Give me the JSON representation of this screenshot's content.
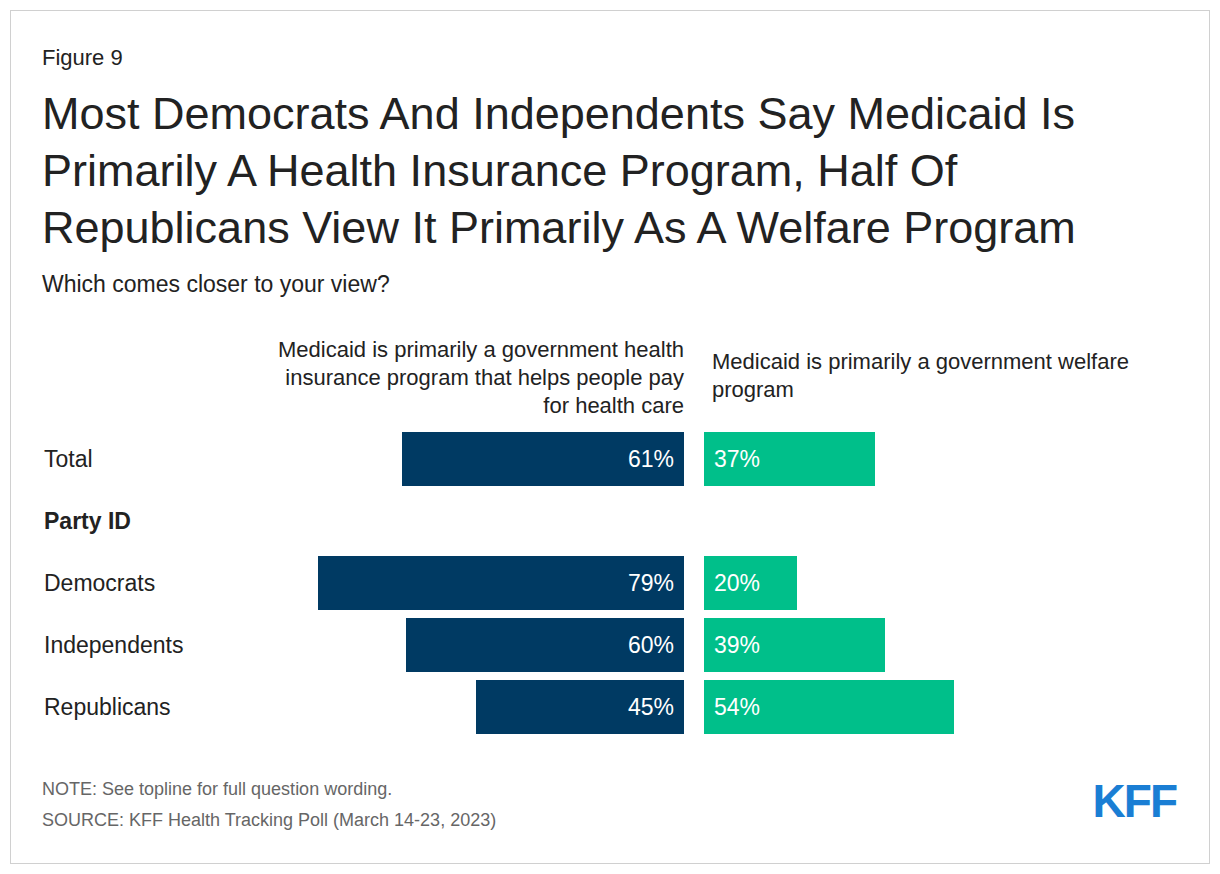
{
  "chart_data": {
    "type": "bar",
    "orientation": "horizontal",
    "figure_label": "Figure 9",
    "title": "Most Democrats And Independents Say Medicaid Is Primarily A Health Insurance Program, Half Of Republicans View It Primarily As A Welfare Program",
    "subtitle": "Which comes closer to your view?",
    "categories": [
      "Total",
      "Party ID",
      "Democrats",
      "Independents",
      "Republicans"
    ],
    "series": [
      {
        "name": "Medicaid is primarily a government health insurance program that helps people pay for health care",
        "color": "#003a63",
        "values": [
          61,
          null,
          79,
          60,
          45
        ],
        "value_labels": [
          "61%",
          null,
          "79%",
          "60%",
          "45%"
        ]
      },
      {
        "name": "Medicaid is primarily a government welfare program",
        "color": "#00bf8a",
        "values": [
          37,
          null,
          20,
          39,
          54
        ],
        "value_labels": [
          "37%",
          null,
          "20%",
          "39%",
          "54%"
        ]
      }
    ],
    "xlim": [
      0,
      100
    ],
    "data_labels": true,
    "tick_labels": false,
    "grid": false,
    "note": "NOTE: See topline for full question wording.",
    "source": "SOURCE: KFF Health Tracking Poll (March 14-23, 2023)",
    "logo": "KFF"
  }
}
